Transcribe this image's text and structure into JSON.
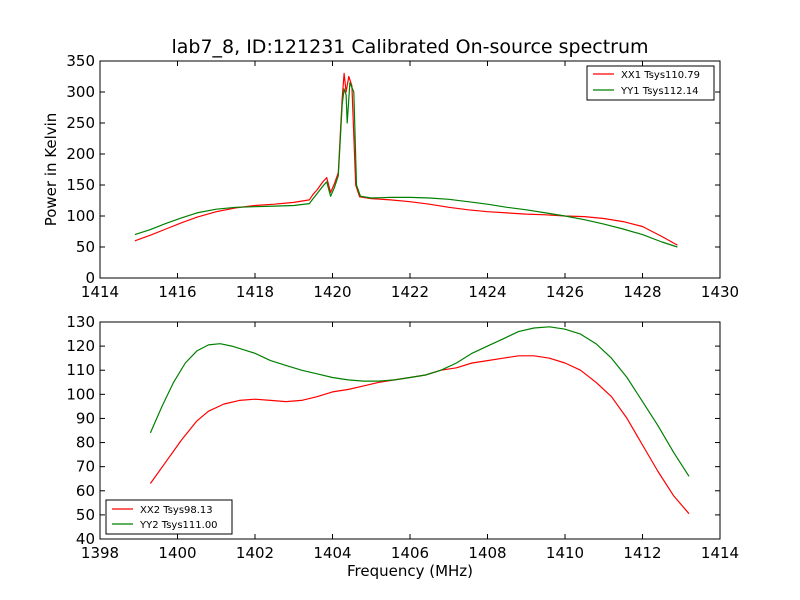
{
  "figure": {
    "title": "lab7_8, ID:121231 Calibrated On-source spectrum",
    "xlabel": "Frequency (MHz)"
  },
  "chart_data": [
    {
      "type": "line",
      "title": "lab7_8, ID:121231 Calibrated On-source spectrum",
      "xlabel": "",
      "ylabel": "Power in Kelvin",
      "xlim": [
        1414,
        1430
      ],
      "ylim": [
        0,
        350
      ],
      "xticks": [
        1414,
        1416,
        1418,
        1420,
        1422,
        1424,
        1426,
        1428,
        1430
      ],
      "yticks": [
        0,
        50,
        100,
        150,
        200,
        250,
        300,
        350
      ],
      "grid": false,
      "legend_position": "top-right",
      "series": [
        {
          "name": "XX1 Tsys110.79",
          "color": "#ff0000",
          "points": [
            [
              1414.9,
              60
            ],
            [
              1415.3,
              69
            ],
            [
              1415.7,
              79
            ],
            [
              1416.1,
              89
            ],
            [
              1416.5,
              98
            ],
            [
              1417.0,
              107
            ],
            [
              1417.5,
              113
            ],
            [
              1418.0,
              117
            ],
            [
              1418.5,
              119
            ],
            [
              1419.0,
              122
            ],
            [
              1419.4,
              126
            ],
            [
              1419.5,
              135
            ],
            [
              1419.6,
              142
            ],
            [
              1419.75,
              155
            ],
            [
              1419.85,
              162
            ],
            [
              1419.95,
              138
            ],
            [
              1420.05,
              152
            ],
            [
              1420.15,
              170
            ],
            [
              1420.25,
              290
            ],
            [
              1420.3,
              330
            ],
            [
              1420.35,
              300
            ],
            [
              1420.42,
              325
            ],
            [
              1420.5,
              310
            ],
            [
              1420.6,
              150
            ],
            [
              1420.7,
              131
            ],
            [
              1421.0,
              128
            ],
            [
              1421.5,
              126
            ],
            [
              1422.0,
              123
            ],
            [
              1422.5,
              119
            ],
            [
              1423.0,
              114
            ],
            [
              1423.5,
              110
            ],
            [
              1424.0,
              107
            ],
            [
              1424.5,
              105
            ],
            [
              1425.0,
              103
            ],
            [
              1425.5,
              102
            ],
            [
              1426.0,
              100
            ],
            [
              1426.5,
              99
            ],
            [
              1427.0,
              96
            ],
            [
              1427.5,
              91
            ],
            [
              1428.0,
              83
            ],
            [
              1428.5,
              67
            ],
            [
              1428.9,
              53
            ]
          ]
        },
        {
          "name": "YY1 Tsys112.14",
          "color": "#008000",
          "points": [
            [
              1414.9,
              70
            ],
            [
              1415.3,
              78
            ],
            [
              1415.7,
              88
            ],
            [
              1416.1,
              97
            ],
            [
              1416.5,
              105
            ],
            [
              1417.0,
              111
            ],
            [
              1417.5,
              114
            ],
            [
              1418.0,
              115
            ],
            [
              1418.5,
              116
            ],
            [
              1419.0,
              117
            ],
            [
              1419.4,
              120
            ],
            [
              1419.5,
              128
            ],
            [
              1419.6,
              136
            ],
            [
              1419.75,
              148
            ],
            [
              1419.85,
              155
            ],
            [
              1419.95,
              132
            ],
            [
              1420.05,
              146
            ],
            [
              1420.15,
              165
            ],
            [
              1420.25,
              280
            ],
            [
              1420.3,
              305
            ],
            [
              1420.35,
              295
            ],
            [
              1420.38,
              250
            ],
            [
              1420.45,
              315
            ],
            [
              1420.55,
              300
            ],
            [
              1420.62,
              150
            ],
            [
              1420.72,
              132
            ],
            [
              1421.0,
              129
            ],
            [
              1421.5,
              130
            ],
            [
              1422.0,
              130
            ],
            [
              1422.5,
              129
            ],
            [
              1423.0,
              127
            ],
            [
              1423.5,
              123
            ],
            [
              1424.0,
              119
            ],
            [
              1424.5,
              114
            ],
            [
              1425.0,
              110
            ],
            [
              1425.5,
              105
            ],
            [
              1426.0,
              100
            ],
            [
              1426.5,
              94
            ],
            [
              1427.0,
              87
            ],
            [
              1427.5,
              79
            ],
            [
              1428.0,
              70
            ],
            [
              1428.5,
              58
            ],
            [
              1428.9,
              50
            ]
          ]
        }
      ]
    },
    {
      "type": "line",
      "title": "",
      "xlabel": "Frequency (MHz)",
      "ylabel": "",
      "xlim": [
        1398,
        1414
      ],
      "ylim": [
        40,
        130
      ],
      "xticks": [
        1398,
        1400,
        1402,
        1404,
        1406,
        1408,
        1410,
        1412,
        1414
      ],
      "yticks": [
        40,
        50,
        60,
        70,
        80,
        90,
        100,
        110,
        120,
        130
      ],
      "grid": false,
      "legend_position": "bottom-left",
      "series": [
        {
          "name": "XX2 Tsys98.13",
          "color": "#ff0000",
          "points": [
            [
              1399.3,
              63
            ],
            [
              1399.7,
              72
            ],
            [
              1400.1,
              81
            ],
            [
              1400.5,
              89
            ],
            [
              1400.8,
              93
            ],
            [
              1401.2,
              96
            ],
            [
              1401.6,
              97.5
            ],
            [
              1402.0,
              98
            ],
            [
              1402.4,
              97.5
            ],
            [
              1402.8,
              97
            ],
            [
              1403.2,
              97.5
            ],
            [
              1403.6,
              99
            ],
            [
              1404.0,
              101
            ],
            [
              1404.4,
              102
            ],
            [
              1404.8,
              103.5
            ],
            [
              1405.2,
              105
            ],
            [
              1405.6,
              106
            ],
            [
              1406.0,
              107
            ],
            [
              1406.4,
              108
            ],
            [
              1406.8,
              110
            ],
            [
              1407.2,
              111
            ],
            [
              1407.6,
              113
            ],
            [
              1408.0,
              114
            ],
            [
              1408.4,
              115
            ],
            [
              1408.8,
              116
            ],
            [
              1409.2,
              116
            ],
            [
              1409.6,
              115
            ],
            [
              1410.0,
              113
            ],
            [
              1410.4,
              110
            ],
            [
              1410.8,
              105
            ],
            [
              1411.2,
              99
            ],
            [
              1411.6,
              90
            ],
            [
              1412.0,
              79
            ],
            [
              1412.4,
              68
            ],
            [
              1412.8,
              58
            ],
            [
              1413.2,
              50.5
            ]
          ]
        },
        {
          "name": "YY2 Tsys111.00",
          "color": "#008000",
          "points": [
            [
              1399.3,
              84
            ],
            [
              1399.6,
              95
            ],
            [
              1399.9,
              105
            ],
            [
              1400.2,
              113
            ],
            [
              1400.5,
              118
            ],
            [
              1400.8,
              120.5
            ],
            [
              1401.1,
              121
            ],
            [
              1401.4,
              120
            ],
            [
              1401.7,
              118.5
            ],
            [
              1402.0,
              117
            ],
            [
              1402.4,
              114
            ],
            [
              1402.8,
              112
            ],
            [
              1403.2,
              110
            ],
            [
              1403.6,
              108.5
            ],
            [
              1404.0,
              107
            ],
            [
              1404.4,
              106
            ],
            [
              1404.8,
              105.5
            ],
            [
              1405.2,
              105.5
            ],
            [
              1405.6,
              106
            ],
            [
              1406.0,
              107
            ],
            [
              1406.4,
              108
            ],
            [
              1406.8,
              110
            ],
            [
              1407.2,
              113
            ],
            [
              1407.6,
              117
            ],
            [
              1408.0,
              120
            ],
            [
              1408.4,
              123
            ],
            [
              1408.8,
              126
            ],
            [
              1409.2,
              127.5
            ],
            [
              1409.6,
              128
            ],
            [
              1410.0,
              127
            ],
            [
              1410.4,
              125
            ],
            [
              1410.8,
              121
            ],
            [
              1411.2,
              115
            ],
            [
              1411.6,
              107
            ],
            [
              1412.0,
              97
            ],
            [
              1412.4,
              87
            ],
            [
              1412.8,
              76
            ],
            [
              1413.2,
              66
            ]
          ]
        }
      ]
    }
  ]
}
